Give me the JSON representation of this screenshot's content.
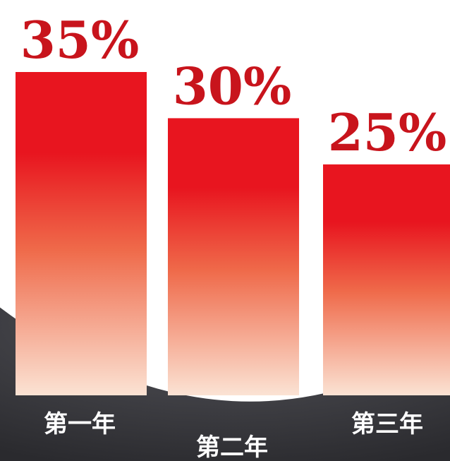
{
  "chart_data": {
    "type": "bar",
    "categories": [
      "第一年",
      "第二年",
      "第三年"
    ],
    "values": [
      35,
      30,
      25
    ],
    "value_labels": [
      "35%",
      "30%",
      "25%"
    ],
    "ylim": [
      0,
      40
    ],
    "grid": false,
    "legend": "none"
  },
  "colors": {
    "bar_top": "#e8151f",
    "bar_mid": "#ef6a4a",
    "bar_bottom": "#fbe3d4",
    "value_label": "#c8141c",
    "category_label": "#ffffff",
    "dark_band": "#2a2a2e",
    "dark_band_edge": "#55555b",
    "background": "#ffffff"
  }
}
